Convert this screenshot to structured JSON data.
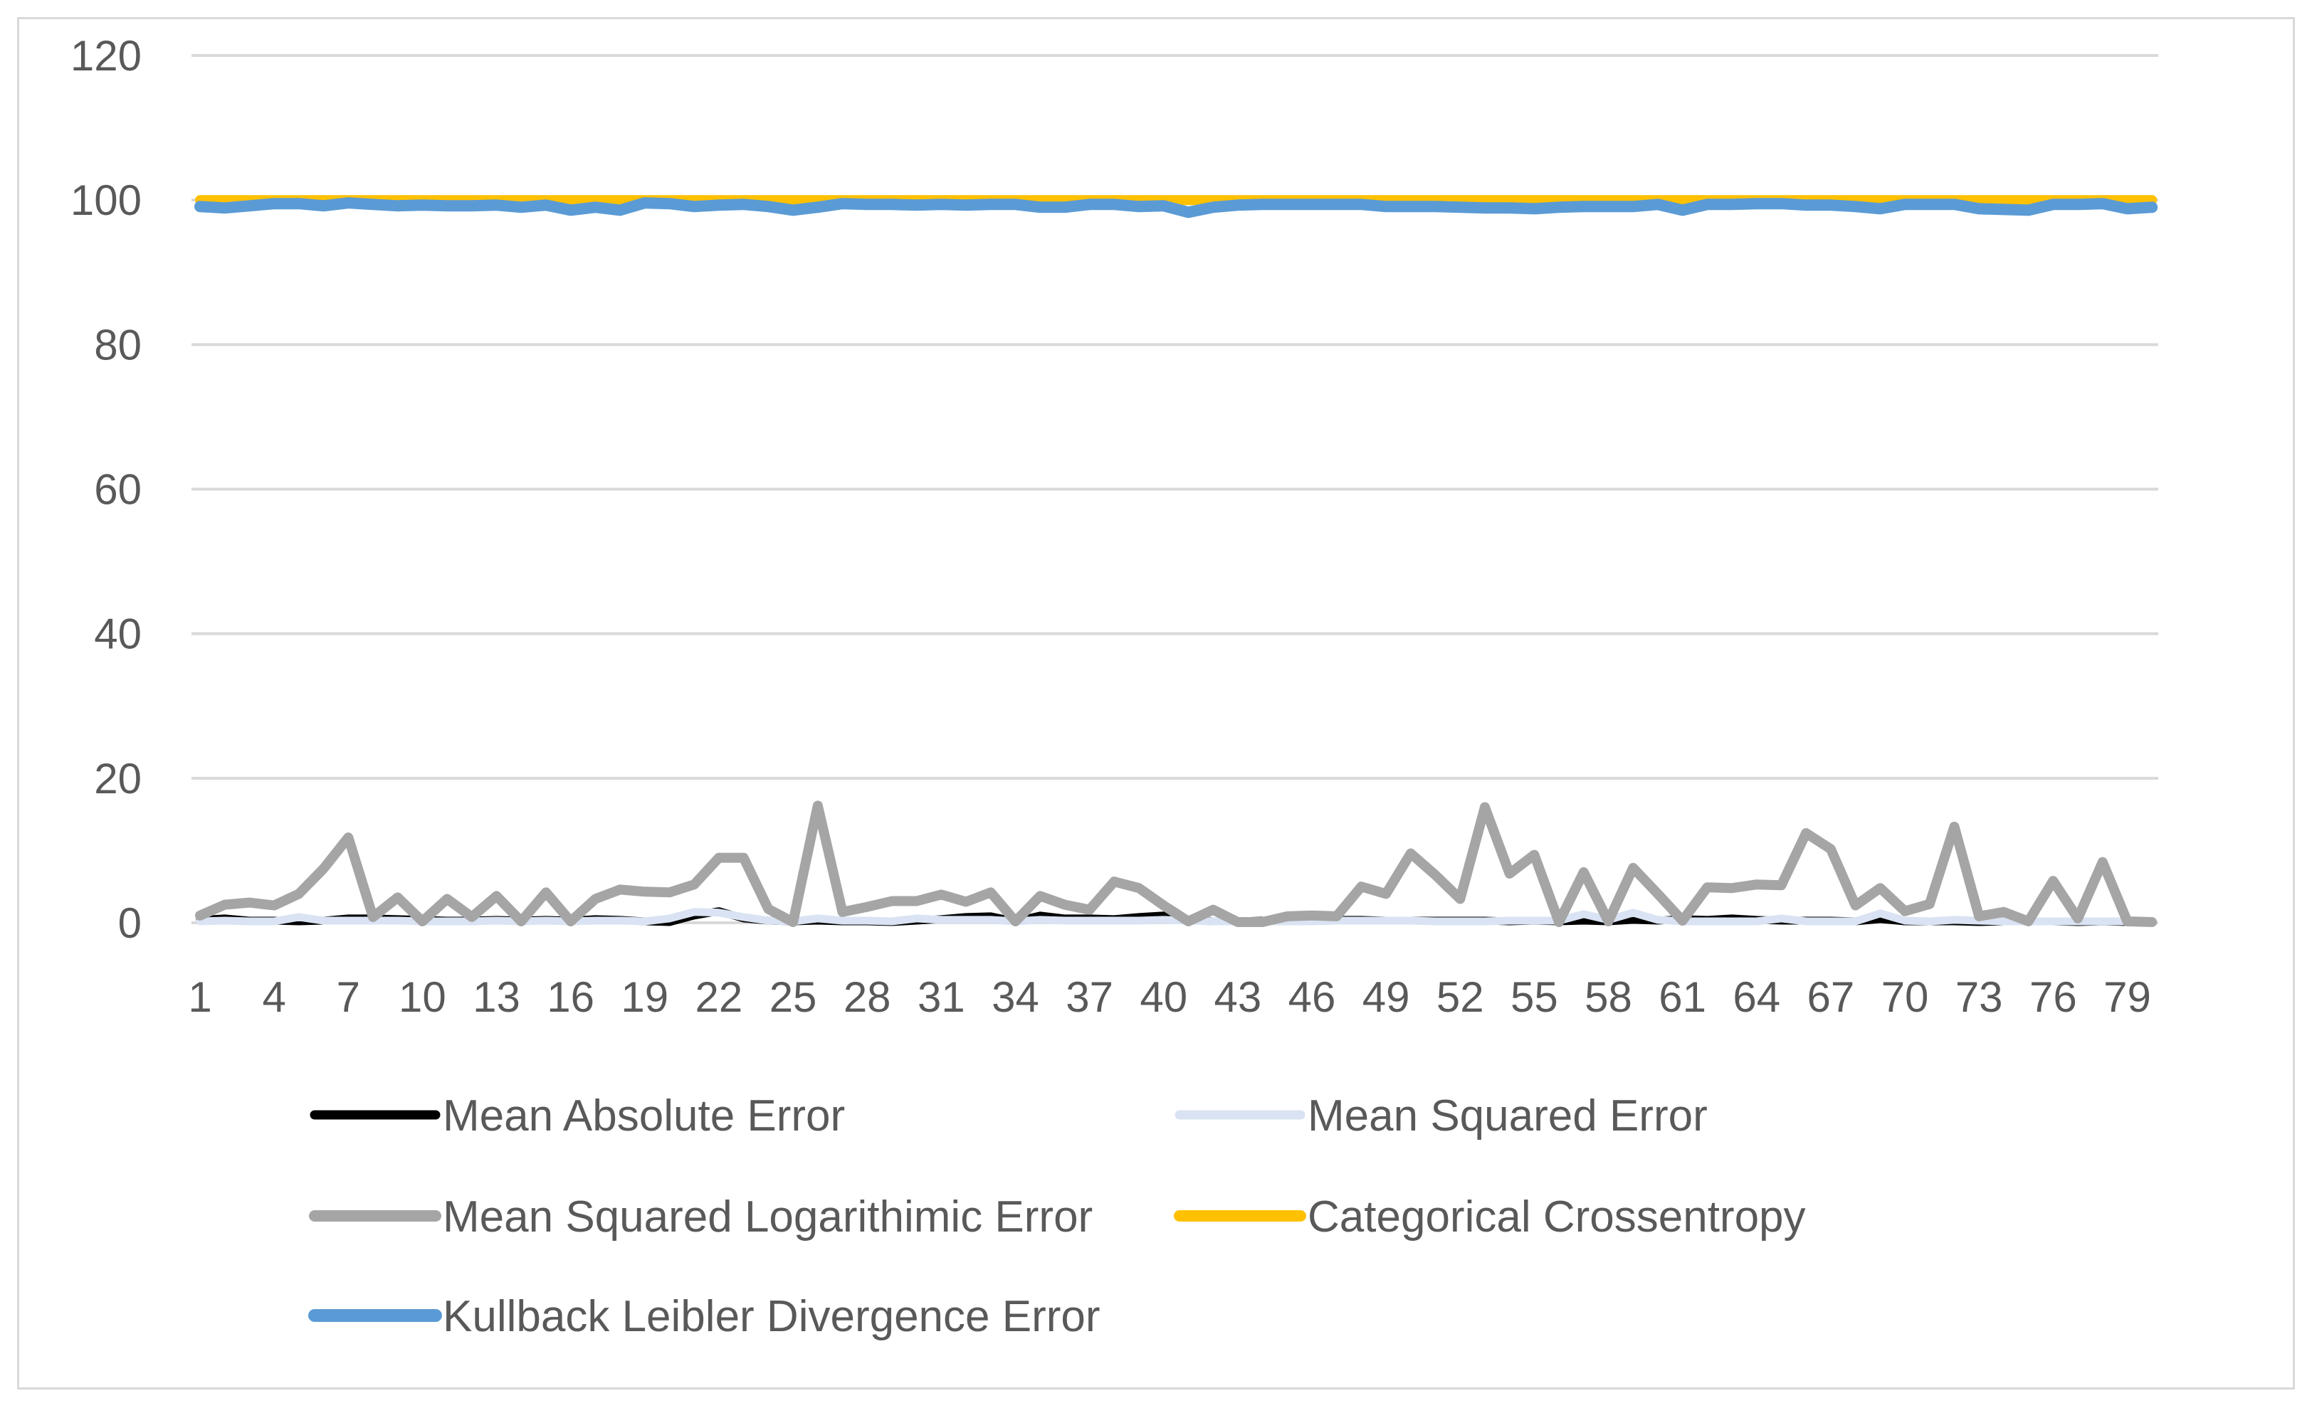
{
  "chart_data": {
    "type": "line",
    "title": "",
    "xlabel": "",
    "ylabel": "",
    "ylim": [
      0,
      120
    ],
    "yticks": [
      "0",
      "20",
      "40",
      "60",
      "80",
      "100",
      "120"
    ],
    "xtick_labels": [
      "1",
      "4",
      "7",
      "10",
      "13",
      "16",
      "19",
      "22",
      "25",
      "28",
      "31",
      "34",
      "37",
      "40",
      "43",
      "46",
      "49",
      "52",
      "55",
      "58",
      "61",
      "64",
      "67",
      "70",
      "73",
      "76",
      "79"
    ],
    "grid": true,
    "legend_position": "bottom",
    "x": [
      1,
      2,
      3,
      4,
      5,
      6,
      7,
      8,
      9,
      10,
      11,
      12,
      13,
      14,
      15,
      16,
      17,
      18,
      19,
      20,
      21,
      22,
      23,
      24,
      25,
      26,
      27,
      28,
      29,
      30,
      31,
      32,
      33,
      34,
      35,
      36,
      37,
      38,
      39,
      40,
      41,
      42,
      43,
      44,
      45,
      46,
      47,
      48,
      49,
      50,
      51,
      52,
      53,
      54,
      55,
      56,
      57,
      58,
      59,
      60,
      61,
      62,
      63,
      64,
      65,
      66,
      67,
      68,
      69,
      70,
      71,
      72,
      73,
      74,
      75,
      76,
      77,
      78,
      79,
      80
    ],
    "series": [
      {
        "name": "Mean Absolute Error",
        "color": "#000000",
        "values": [
          0.4,
          0.6,
          0.3,
          0.3,
          0.2,
          0.3,
          0.6,
          0.6,
          0.5,
          0.4,
          0.3,
          0.3,
          0.4,
          0.3,
          0.4,
          0.3,
          0.5,
          0.4,
          0.2,
          0.1,
          1.0,
          1.6,
          0.6,
          0.3,
          0.2,
          0.3,
          0.2,
          0.2,
          0.1,
          0.3,
          0.5,
          0.8,
          0.9,
          0.2,
          1.0,
          0.6,
          0.6,
          0.5,
          0.8,
          1.0,
          0.4,
          0.2,
          0.2,
          0.3,
          0.3,
          0.3,
          0.4,
          0.4,
          0.3,
          0.3,
          0.3,
          0.3,
          0.3,
          0.2,
          0.3,
          0.2,
          0.3,
          0.2,
          0.4,
          0.3,
          0.5,
          0.4,
          0.6,
          0.4,
          0.3,
          0.3,
          0.3,
          0.2,
          0.5,
          0.2,
          0.2,
          0.2,
          0.1,
          0.2,
          0.2,
          0.2,
          0.1,
          0.2,
          0.1,
          0.1
        ]
      },
      {
        "name": "Mean Squared Error",
        "color": "#dae3f3",
        "values": [
          0.2,
          0.3,
          0.2,
          0.2,
          0.8,
          0.3,
          0.3,
          0.3,
          0.3,
          0.2,
          0.2,
          0.2,
          0.3,
          0.2,
          0.3,
          0.2,
          0.3,
          0.3,
          0.2,
          0.6,
          1.5,
          1.4,
          0.8,
          0.3,
          0.2,
          0.6,
          0.3,
          0.3,
          0.2,
          0.6,
          0.4,
          0.4,
          0.4,
          0.2,
          0.4,
          0.3,
          0.3,
          0.3,
          0.3,
          0.4,
          0.3,
          0.2,
          0.2,
          0.2,
          0.2,
          0.2,
          0.3,
          0.3,
          0.3,
          0.3,
          0.2,
          0.2,
          0.2,
          0.3,
          0.3,
          0.3,
          1.2,
          0.4,
          1.4,
          0.4,
          0.2,
          0.2,
          0.2,
          0.2,
          0.6,
          0.2,
          0.2,
          0.2,
          1.3,
          0.3,
          0.2,
          0.4,
          0.3,
          0.2,
          0.2,
          0.2,
          0.2,
          0.2,
          0.2,
          0.2
        ]
      },
      {
        "name": "Mean Squared Logarithimic Error",
        "color": "#a5a5a5",
        "values": [
          1.0,
          2.5,
          2.8,
          2.4,
          4.0,
          7.5,
          11.8,
          0.8,
          3.5,
          0.2,
          3.3,
          0.8,
          3.7,
          0.2,
          4.2,
          0.2,
          3.3,
          4.6,
          4.3,
          4.2,
          5.3,
          9.0,
          9.0,
          1.9,
          0.1,
          16.2,
          1.5,
          2.2,
          3.0,
          3.0,
          3.9,
          2.9,
          4.2,
          0.2,
          3.7,
          2.5,
          1.8,
          5.7,
          4.8,
          2.4,
          0.2,
          1.8,
          0.1,
          0.1,
          0.9,
          1.0,
          0.9,
          5.0,
          4.0,
          9.6,
          6.6,
          3.3,
          16.0,
          6.8,
          9.4,
          0.1,
          7.0,
          0.2,
          7.6,
          4.0,
          0.3,
          4.9,
          4.8,
          5.3,
          5.2,
          12.4,
          10.2,
          2.4,
          4.8,
          1.6,
          2.6,
          13.3,
          0.9,
          1.5,
          0.2,
          5.8,
          0.6,
          8.4,
          0.2,
          0.1
        ]
      },
      {
        "name": "Categorical Crossentropy",
        "color": "#ffc000",
        "values": [
          100,
          100,
          100,
          100,
          100,
          100,
          100,
          100,
          100,
          100,
          100,
          100,
          100,
          100,
          100,
          100,
          100,
          100,
          100,
          100,
          100,
          100,
          100,
          100,
          100,
          100,
          100,
          100,
          100,
          100,
          100,
          100,
          100,
          100,
          100,
          100,
          100,
          100,
          100,
          100,
          100,
          100,
          100,
          100,
          100,
          100,
          100,
          100,
          100,
          100,
          100,
          100,
          100,
          100,
          100,
          100,
          100,
          100,
          100,
          100,
          100,
          100,
          100,
          100,
          100,
          100,
          100,
          100,
          100,
          100,
          100,
          100,
          100,
          100,
          100,
          100,
          100,
          100,
          100,
          100
        ]
      },
      {
        "name": "Kullback Leibler Divergence Error",
        "color": "#5b9bd5",
        "values": [
          99.1,
          98.9,
          99.2,
          99.5,
          99.5,
          99.2,
          99.6,
          99.4,
          99.2,
          99.3,
          99.2,
          99.2,
          99.3,
          99.0,
          99.3,
          98.6,
          99.0,
          98.6,
          99.6,
          99.5,
          99.1,
          99.3,
          99.4,
          99.1,
          98.6,
          99.0,
          99.5,
          99.4,
          99.4,
          99.3,
          99.4,
          99.3,
          99.4,
          99.4,
          99.0,
          99.0,
          99.4,
          99.4,
          99.1,
          99.2,
          98.3,
          99.0,
          99.3,
          99.4,
          99.4,
          99.4,
          99.4,
          99.4,
          99.1,
          99.1,
          99.1,
          99.0,
          98.9,
          98.9,
          98.8,
          99.0,
          99.1,
          99.1,
          99.1,
          99.4,
          98.6,
          99.4,
          99.4,
          99.5,
          99.5,
          99.3,
          99.3,
          99.1,
          98.8,
          99.4,
          99.4,
          99.4,
          98.8,
          98.7,
          98.6,
          99.4,
          99.4,
          99.5,
          98.8,
          99.0
        ]
      }
    ]
  }
}
